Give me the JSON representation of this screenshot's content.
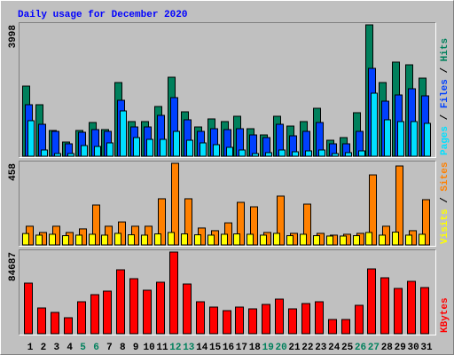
{
  "chart_data": [
    {
      "type": "bar",
      "title": "Daily usage for December 2020",
      "ylim": [
        0,
        3998
      ],
      "yticks": [
        3998
      ],
      "legend_separator": " / ",
      "series": [
        {
          "name": "Hits",
          "color": "#00805C",
          "values": [
            2134,
            1567,
            783,
            432,
            783,
            1026,
            810,
            2242,
            1054,
            1054,
            1513,
            2404,
            1351,
            891,
            1135,
            1054,
            1216,
            837,
            648,
            1216,
            918,
            1054,
            1459,
            486,
            567,
            1324,
            3998,
            2242,
            2864,
            2782,
            2377
          ]
        },
        {
          "name": "Files",
          "color": "#0040FF",
          "values": [
            1567,
            972,
            756,
            378,
            729,
            810,
            756,
            1702,
            891,
            891,
            1243,
            1783,
            1108,
            756,
            837,
            810,
            837,
            648,
            567,
            972,
            621,
            756,
            1026,
            378,
            378,
            756,
            2674,
            1675,
            1864,
            2053,
            1837
          ]
        },
        {
          "name": "Pages",
          "color": "#00E0FF",
          "values": [
            1081,
            189,
            81,
            81,
            324,
            297,
            405,
            1378,
            567,
            513,
            513,
            756,
            486,
            405,
            351,
            270,
            189,
            81,
            108,
            189,
            135,
            162,
            189,
            81,
            108,
            162,
            1918,
            1108,
            1054,
            1054,
            1000
          ]
        }
      ]
    },
    {
      "type": "bar",
      "ylim": [
        0,
        458
      ],
      "yticks": [
        458
      ],
      "legend_separator": " / ",
      "series": [
        {
          "name": "Sites",
          "color": "#FF8000",
          "values": [
            105,
            70,
            105,
            70,
            90,
            224,
            105,
            129,
            105,
            105,
            259,
            458,
            259,
            95,
            80,
            124,
            239,
            214,
            70,
            274,
            65,
            229,
            65,
            55,
            60,
            65,
            393,
            105,
            443,
            80,
            254
          ]
        },
        {
          "name": "Visits",
          "color": "#FFFF00",
          "values": [
            64,
            55,
            60,
            52,
            55,
            60,
            55,
            65,
            57,
            55,
            62,
            70,
            62,
            57,
            55,
            60,
            62,
            60,
            55,
            65,
            52,
            60,
            52,
            50,
            50,
            52,
            70,
            55,
            72,
            55,
            60
          ]
        }
      ]
    },
    {
      "type": "bar",
      "ylim": [
        0,
        84687
      ],
      "yticks": [
        84687
      ],
      "categories": [
        "1",
        "2",
        "3",
        "4",
        "5",
        "6",
        "7",
        "8",
        "9",
        "10",
        "11",
        "12",
        "13",
        "14",
        "15",
        "16",
        "17",
        "18",
        "19",
        "20",
        "21",
        "22",
        "23",
        "24",
        "25",
        "26",
        "27",
        "28",
        "29",
        "30",
        "31"
      ],
      "category_colors": [
        "#000000",
        "#000000",
        "#000000",
        "#000000",
        "#00805C",
        "#00805C",
        "#000000",
        "#000000",
        "#000000",
        "#000000",
        "#000000",
        "#00805C",
        "#00805C",
        "#000000",
        "#000000",
        "#000000",
        "#000000",
        "#000000",
        "#00805C",
        "#00805C",
        "#000000",
        "#000000",
        "#000000",
        "#000000",
        "#000000",
        "#00805C",
        "#00805C",
        "#000000",
        "#000000",
        "#000000",
        "#000000"
      ],
      "series": [
        {
          "name": "KBytes",
          "color": "#FF0000",
          "values": [
            52468,
            26694,
            22092,
            16569,
            33138,
            40502,
            44184,
            66276,
            57072,
            45105,
            53390,
            84687,
            51549,
            33138,
            27615,
            23933,
            27615,
            25774,
            30377,
            35900,
            25774,
            31297,
            33138,
            14728,
            14728,
            29457,
            67198,
            57992,
            46946,
            54310,
            47866
          ]
        }
      ]
    }
  ]
}
